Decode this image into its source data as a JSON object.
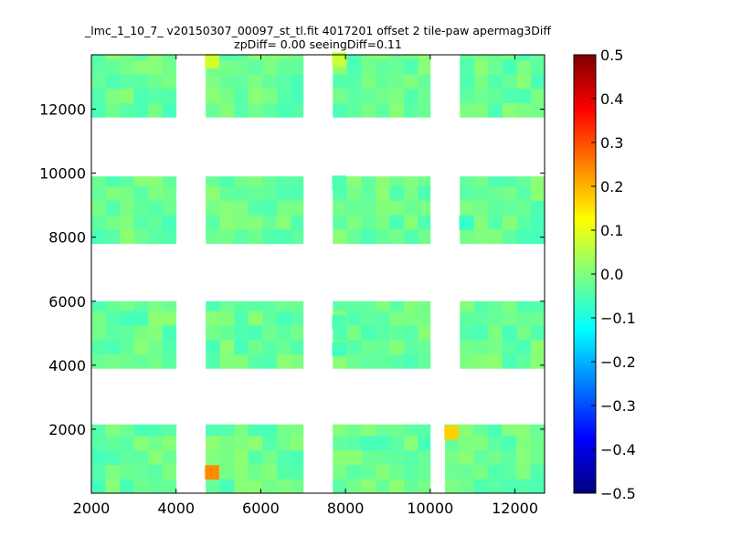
{
  "chart_data": {
    "type": "heatmap",
    "title_line1": "_lmc_1_10_7_ v20150307_00097_st_tl.fit 4017201 offset 2 tile-paw apermag3Diff",
    "title_line2": "zpDiff= 0.00 seeingDiff=0.11",
    "xlabel": "",
    "ylabel": "",
    "xlim": [
      2000,
      12700
    ],
    "ylim": [
      0,
      13700
    ],
    "xticks": [
      2000,
      4000,
      6000,
      8000,
      10000,
      12000
    ],
    "yticks": [
      2000,
      4000,
      6000,
      8000,
      10000,
      12000
    ],
    "xtick_labels": [
      "2000",
      "4000",
      "6000",
      "8000",
      "10000",
      "12000"
    ],
    "ytick_labels": [
      "2000",
      "4000",
      "6000",
      "8000",
      "10000",
      "12000"
    ],
    "colorbar": {
      "colormap": "jet",
      "vmin": -0.5,
      "vmax": 0.5,
      "ticks": [
        0.5,
        0.4,
        0.3,
        0.2,
        0.1,
        0.0,
        -0.1,
        -0.2,
        -0.3,
        -0.4,
        -0.5
      ],
      "tick_labels": [
        "0.5",
        "0.4",
        "0.3",
        "0.2",
        "0.1",
        "0.0",
        "−0.1",
        "−0.2",
        "−0.3",
        "−0.4",
        "−0.5"
      ]
    },
    "cell_size": [
      335,
      450
    ],
    "detector_blocks": [
      {
        "x0": 2000,
        "x1": 4000,
        "y0": 0,
        "y1": 2150
      },
      {
        "x0": 4700,
        "x1": 7000,
        "y0": 0,
        "y1": 2150
      },
      {
        "x0": 7700,
        "x1": 10000,
        "y0": 0,
        "y1": 2150
      },
      {
        "x0": 10350,
        "x1": 12700,
        "y0": 0,
        "y1": 2150
      },
      {
        "x0": 2000,
        "x1": 4000,
        "y0": 3900,
        "y1": 6000
      },
      {
        "x0": 4700,
        "x1": 7000,
        "y0": 3900,
        "y1": 6000
      },
      {
        "x0": 7700,
        "x1": 10000,
        "y0": 3900,
        "y1": 6000
      },
      {
        "x0": 10700,
        "x1": 12700,
        "y0": 3900,
        "y1": 6000
      },
      {
        "x0": 2000,
        "x1": 4000,
        "y0": 7800,
        "y1": 9900
      },
      {
        "x0": 4700,
        "x1": 7000,
        "y0": 7800,
        "y1": 9900
      },
      {
        "x0": 7700,
        "x1": 10000,
        "y0": 7800,
        "y1": 9900
      },
      {
        "x0": 10700,
        "x1": 12700,
        "y0": 7800,
        "y1": 9900
      },
      {
        "x0": 2000,
        "x1": 4000,
        "y0": 11750,
        "y1": 13700
      },
      {
        "x0": 4700,
        "x1": 7000,
        "y0": 11750,
        "y1": 13700
      },
      {
        "x0": 7700,
        "x1": 10000,
        "y0": 11750,
        "y1": 13700
      },
      {
        "x0": 10700,
        "x1": 12700,
        "y0": 11750,
        "y1": 13700
      }
    ],
    "notable_cells": [
      {
        "x": 10500,
        "y": 1900,
        "value": 0.17
      },
      {
        "x": 4850,
        "y": 650,
        "value": 0.24
      },
      {
        "x": 4850,
        "y": 13500,
        "value": 0.08
      },
      {
        "x": 7850,
        "y": 13550,
        "value": 0.07
      },
      {
        "x": 10850,
        "y": 8450,
        "value": -0.07
      },
      {
        "x": 7850,
        "y": 4500,
        "value": -0.06
      },
      {
        "x": 7850,
        "y": 5350,
        "value": -0.05
      },
      {
        "x": 7850,
        "y": 9700,
        "value": -0.05
      }
    ]
  }
}
